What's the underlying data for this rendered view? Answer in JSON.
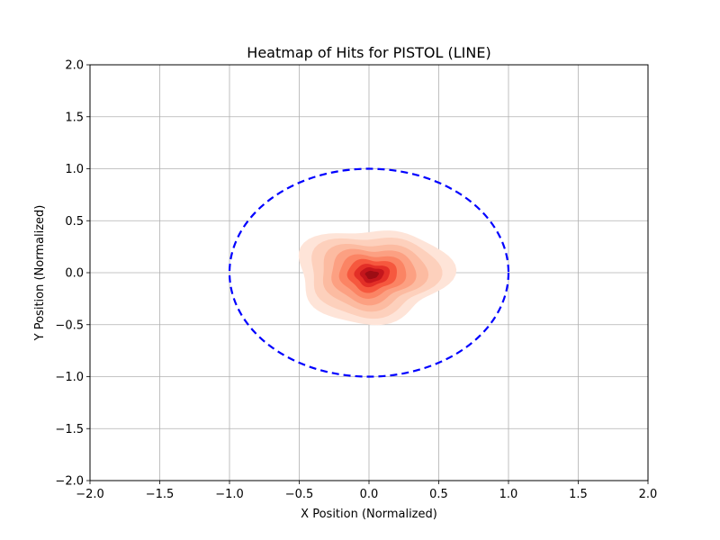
{
  "chart_data": {
    "type": "heatmap",
    "title": "Heatmap of Hits for PISTOL (LINE)",
    "xlabel": "X Position (Normalized)",
    "ylabel": "Y Position (Normalized)",
    "xlim": [
      -2.0,
      2.0
    ],
    "ylim": [
      -2.0,
      2.0
    ],
    "x_ticks": [
      -2.0,
      -1.5,
      -1.0,
      -0.5,
      0.0,
      0.5,
      1.0,
      1.5,
      2.0
    ],
    "y_ticks": [
      -2.0,
      -1.5,
      -1.0,
      -0.5,
      0.0,
      0.5,
      1.0,
      1.5,
      2.0
    ],
    "x_tick_labels": [
      "−2.0",
      "−1.5",
      "−1.0",
      "−0.5",
      "0.0",
      "0.5",
      "1.0",
      "1.5",
      "2.0"
    ],
    "y_tick_labels": [
      "−2.0",
      "−1.5",
      "−1.0",
      "−0.5",
      "0.0",
      "0.5",
      "1.0",
      "1.5",
      "2.0"
    ],
    "grid": true,
    "colormap": "Reds",
    "density_center": [
      0.02,
      -0.02
    ],
    "density_contours": [
      {
        "level": 1,
        "rx": 0.52,
        "ry": 0.47,
        "color": "#fee4d8"
      },
      {
        "level": 2,
        "rx": 0.44,
        "ry": 0.4,
        "color": "#fdd0bc"
      },
      {
        "level": 3,
        "rx": 0.36,
        "ry": 0.33,
        "color": "#fcbba1"
      },
      {
        "level": 4,
        "rx": 0.29,
        "ry": 0.27,
        "color": "#fca082"
      },
      {
        "level": 5,
        "rx": 0.23,
        "ry": 0.21,
        "color": "#fb8464"
      },
      {
        "level": 6,
        "rx": 0.17,
        "ry": 0.16,
        "color": "#f6583e"
      },
      {
        "level": 7,
        "rx": 0.12,
        "ry": 0.11,
        "color": "#e32f27"
      },
      {
        "level": 8,
        "rx": 0.08,
        "ry": 0.075,
        "color": "#c4161c"
      },
      {
        "level": 9,
        "rx": 0.045,
        "ry": 0.04,
        "color": "#9d0d14"
      }
    ],
    "target_circle": {
      "center": [
        0.0,
        0.0
      ],
      "radius": 1.0,
      "color": "#0000ff",
      "style": "dashed"
    }
  }
}
